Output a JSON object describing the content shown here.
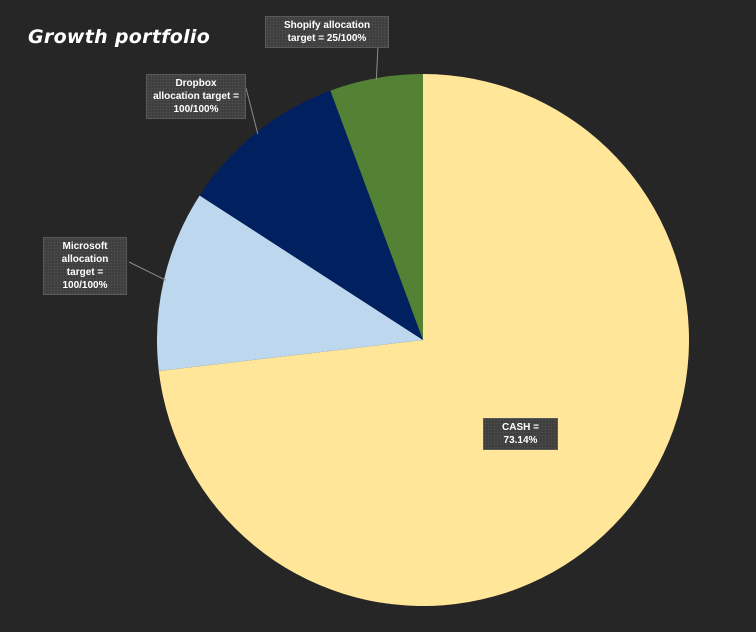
{
  "chart_data": {
    "type": "pie",
    "title": "Growth portfolio",
    "slices": [
      {
        "name": "CASH",
        "value": 73.14,
        "color": "#FFE699",
        "label": "CASH = 73.14%"
      },
      {
        "name": "Microsoft",
        "value": 11.0,
        "color": "#BDD7EE",
        "label": "Microsoft allocation target = 100/100%"
      },
      {
        "name": "Dropbox",
        "value": 10.2,
        "color": "#002060",
        "label": "Dropbox allocation target = 100/100%"
      },
      {
        "name": "Shopify",
        "value": 5.66,
        "color": "#548235",
        "label": "Shopify allocation target = 25/100%"
      }
    ],
    "start_angle_deg": 0,
    "direction": "clockwise",
    "legend": "none",
    "background": "#262626"
  }
}
